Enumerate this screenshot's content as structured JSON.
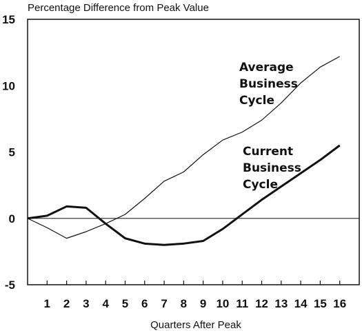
{
  "chart_data": {
    "type": "line",
    "ylabel": "Percentage Difference from Peak Value",
    "xlabel": "Quarters After Peak",
    "x": [
      0,
      1,
      2,
      3,
      4,
      5,
      6,
      7,
      8,
      9,
      10,
      11,
      12,
      13,
      14,
      15,
      16
    ],
    "xticks": [
      "1",
      "2",
      "3",
      "4",
      "5",
      "6",
      "7",
      "8",
      "9",
      "10",
      "11",
      "12",
      "13",
      "14",
      "15",
      "16"
    ],
    "yticks": [
      "-5",
      "0",
      "5",
      "10",
      "15"
    ],
    "ylim": [
      -5,
      15
    ],
    "xlim": [
      0,
      17
    ],
    "series": [
      {
        "name": "Average Business Cycle",
        "label_lines": [
          "Average",
          "Business",
          "Cycle"
        ],
        "line_weight": "thin",
        "values": [
          0,
          -0.7,
          -1.5,
          -1.0,
          -0.4,
          0.3,
          1.5,
          2.8,
          3.5,
          4.8,
          5.9,
          6.5,
          7.4,
          8.7,
          10.2,
          11.4,
          12.2
        ]
      },
      {
        "name": "Current Business Cycle",
        "label_lines": [
          "Current",
          "Business",
          "Cycle"
        ],
        "line_weight": "thick",
        "values": [
          0,
          0.2,
          0.9,
          0.8,
          -0.4,
          -1.5,
          -1.9,
          -2.0,
          -1.9,
          -1.7,
          -0.8,
          0.3,
          1.4,
          2.4,
          3.4,
          4.4,
          5.5
        ]
      }
    ],
    "grid": false,
    "zero_line": true
  }
}
